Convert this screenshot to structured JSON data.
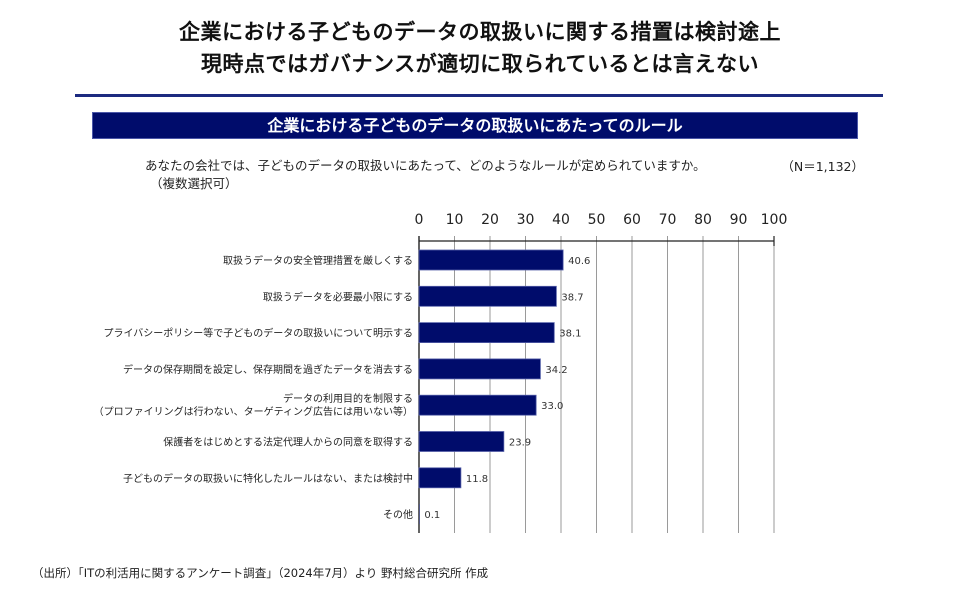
{
  "header": {
    "title_line1": "企業における子どものデータの取扱いに関する措置は検討途上",
    "title_line2": "現時点ではガバナンスが適切に取られているとは言えない",
    "banner": "企業における子どものデータの取扱いにあたってのルール"
  },
  "question": {
    "text": "あなたの会社では、子どものデータの取扱いにあたって、どのようなルールが定められていますか。",
    "note": "（複数選択可）",
    "n": "（N＝1,132）"
  },
  "colors": {
    "bar": "#000c6b",
    "banner": "#000c6b",
    "divider": "#1c2a80"
  },
  "chart_data": {
    "type": "bar",
    "orientation": "horizontal",
    "categories": [
      [
        "取扱うデータの安全管理措置を厳しくする"
      ],
      [
        "取扱うデータを必要最小限にする"
      ],
      [
        "プライバシーポリシー等で子どものデータの取扱いについて明示する"
      ],
      [
        "データの保存期間を設定し、保存期間を過ぎたデータを消去する"
      ],
      [
        "データの利用目的を制限する",
        "（プロファイリングは行わない、ターゲティング広告には用いない等）"
      ],
      [
        "保護者をはじめとする法定代理人からの同意を取得する"
      ],
      [
        "子どものデータの取扱いに特化したルールはない、または検討中"
      ],
      [
        "その他"
      ]
    ],
    "values": [
      40.6,
      38.7,
      38.1,
      34.2,
      33.0,
      23.9,
      11.8,
      0.1
    ],
    "value_labels": [
      "40.6",
      "38.7",
      "38.1",
      "34.2",
      "33.0",
      "23.9",
      "11.8",
      "0.1"
    ],
    "xlim": [
      0,
      100
    ],
    "xticks": [
      "0",
      "10",
      "20",
      "30",
      "40",
      "50",
      "60",
      "70",
      "80",
      "90",
      "100"
    ],
    "grid": true,
    "xaxis_position": "top",
    "title": "企業における子どものデータの取扱いにあたってのルール",
    "xlabel": "",
    "ylabel": ""
  },
  "footer": {
    "source": "（出所）「ITの利活用に関するアンケート調査」（2024年7月）より 野村総合研究所 作成"
  }
}
